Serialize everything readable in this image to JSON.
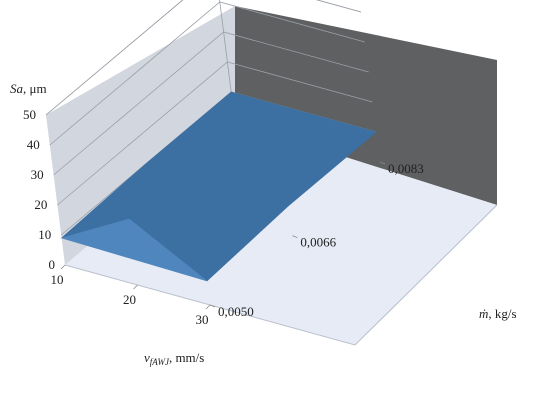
{
  "chart_data": {
    "type": "surface",
    "title": "",
    "z_axis": {
      "label_italic": "Sa",
      "label_rest": ", μm",
      "ticks": [
        "0",
        "10",
        "20",
        "30",
        "40",
        "50"
      ],
      "range": [
        0,
        50
      ]
    },
    "x_axis": {
      "label_italic": "v",
      "label_sub": "fAWJ",
      "label_rest": ", mm/s",
      "ticks": [
        "10",
        "20",
        "30"
      ],
      "range": [
        10,
        30
      ]
    },
    "y_axis": {
      "label_italic": "ṁ",
      "label_rest": ", kg/s",
      "ticks": [
        "0,0050",
        "0,0066",
        "0,0083"
      ],
      "range": [
        0.005,
        0.0083
      ]
    },
    "surface": {
      "x": [
        10,
        20,
        30
      ],
      "y": [
        0.005,
        0.0066,
        0.0083
      ],
      "z": [
        [
          9,
          22,
          8
        ],
        [
          10,
          10,
          10
        ],
        [
          10,
          10,
          10
        ]
      ]
    },
    "colors": {
      "surface": "#3c6fa2",
      "surface_light": "#4f86bd",
      "back_wall": "#5f6062",
      "left_wall": "#d2d6de",
      "floor": "#e6ebf5",
      "grid": "#9aa0a8"
    }
  }
}
